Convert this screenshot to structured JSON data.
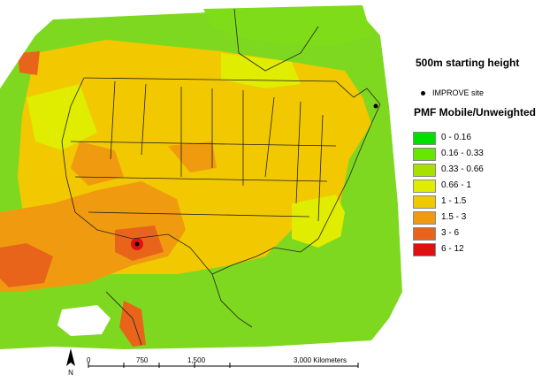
{
  "map": {
    "starting_height": "500m starting height",
    "site_label": "IMPROVE site",
    "legend_title": "PMF Mobile/Unweighted",
    "legend": [
      {
        "label": "0 - 0.16",
        "color": "#00e000"
      },
      {
        "label": "0.16 - 0.33",
        "color": "#66e600"
      },
      {
        "label": "0.33 - 0.66",
        "color": "#a8e000"
      },
      {
        "label": "0.66 - 1",
        "color": "#e0ec00"
      },
      {
        "label": "1 - 1.5",
        "color": "#f2c800"
      },
      {
        "label": "1.5 - 3",
        "color": "#f09a10"
      },
      {
        "label": "3 - 6",
        "color": "#e8641a"
      },
      {
        "label": "6 - 12",
        "color": "#e01010"
      }
    ],
    "north_label": "N",
    "scale": {
      "ticks": [
        "0",
        "750",
        "1,500",
        "3,000 Kilometers"
      ]
    }
  }
}
